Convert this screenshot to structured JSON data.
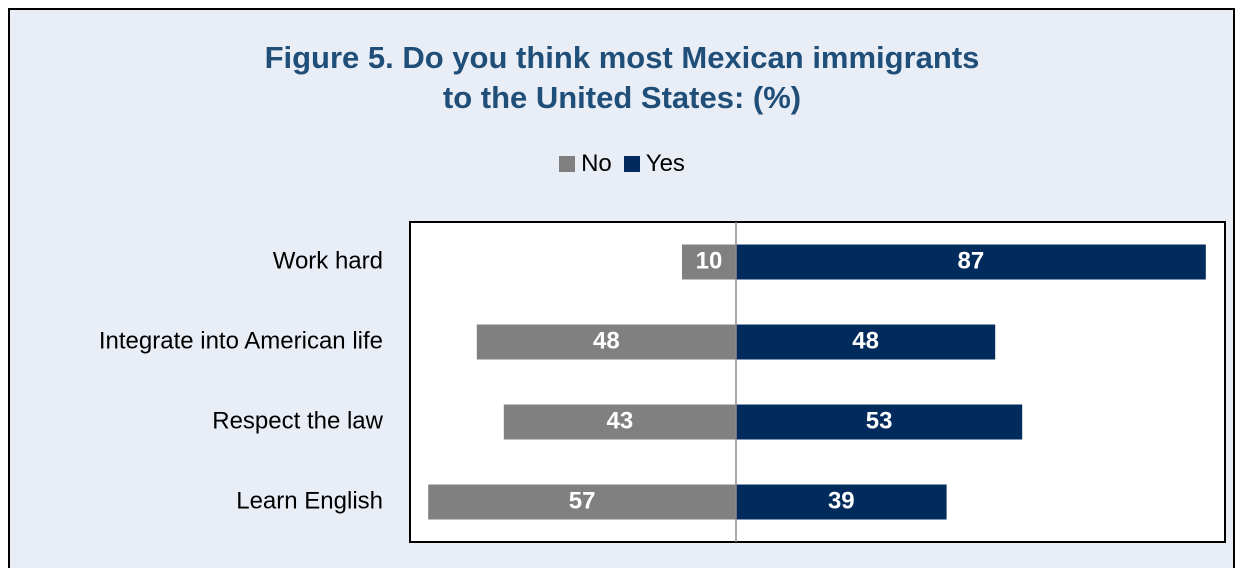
{
  "chart_data": {
    "type": "bar",
    "orientation": "horizontal-diverging",
    "title": "Figure 5. Do you think most Mexican immigrants to the United States: (%)",
    "title_lines": [
      "Figure 5. Do you think most Mexican immigrants",
      "to the United States: (%)"
    ],
    "categories": [
      "Work hard",
      "Integrate into American life",
      "Respect the law",
      "Learn English"
    ],
    "series": [
      {
        "name": "No",
        "values": [
          10,
          48,
          43,
          57
        ],
        "color": "#808080"
      },
      {
        "name": "Yes",
        "values": [
          87,
          48,
          53,
          39
        ],
        "color": "#002b5c"
      }
    ],
    "legend_position": "top",
    "grid": false,
    "xlim": [
      -57,
      87
    ]
  }
}
